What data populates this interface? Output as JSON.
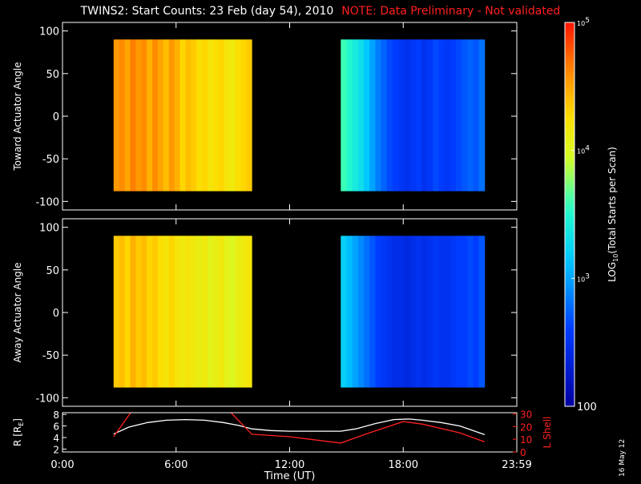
{
  "title": {
    "main": "TWINS2: Start Counts: 23 Feb (day  54), 2010",
    "note": "NOTE: Data Preliminary - Not validated"
  },
  "stamp": "16 May 12",
  "colors": {
    "background": "#000000",
    "axes": "#ffffff",
    "note": "#ff2020",
    "r_line": "#ffffff",
    "lshell_line": "#ff2020"
  },
  "chart_data": [
    {
      "type": "heatmap",
      "name": "toward",
      "ylabel": "Toward Actuator Angle",
      "ylim": [
        -110,
        110
      ],
      "yticks": [
        100,
        50,
        0,
        -50,
        -100
      ],
      "xlim": [
        0,
        24
      ],
      "angle_range": [
        -88,
        90
      ],
      "colorscale": "log10",
      "segments": [
        {
          "t_start": 2.7,
          "t_end": 10.0,
          "log_counts": [
            4.55,
            4.6,
            4.5,
            4.65,
            4.55,
            4.6,
            4.45,
            4.6,
            4.5,
            4.4,
            4.55,
            4.45,
            4.3,
            4.4,
            4.35,
            4.25,
            4.3,
            4.2,
            4.25,
            4.3,
            4.2,
            4.15,
            4.25,
            4.3,
            4.35
          ]
        },
        {
          "t_start": 14.7,
          "t_end": 22.3,
          "log_counts": [
            3.6,
            3.5,
            3.4,
            3.3,
            3.15,
            3.0,
            2.85,
            2.75,
            2.65,
            2.6,
            2.55,
            2.5,
            2.55,
            2.6,
            2.5,
            2.55,
            2.65,
            2.6,
            2.55,
            2.6,
            2.65,
            2.7,
            2.75,
            2.7,
            2.8
          ]
        }
      ]
    },
    {
      "type": "heatmap",
      "name": "away",
      "ylabel": "Away Actuator Angle",
      "ylim": [
        -110,
        110
      ],
      "yticks": [
        100,
        50,
        0,
        -50,
        -100
      ],
      "xlim": [
        0,
        24
      ],
      "angle_range": [
        -88,
        90
      ],
      "colorscale": "log10",
      "segments": [
        {
          "t_start": 2.7,
          "t_end": 10.0,
          "log_counts": [
            4.35,
            4.4,
            4.3,
            4.45,
            4.35,
            4.4,
            4.3,
            4.35,
            4.25,
            4.2,
            4.3,
            4.2,
            4.15,
            4.2,
            4.15,
            4.1,
            4.15,
            4.05,
            4.1,
            4.15,
            4.05,
            4.0,
            4.1,
            4.15,
            4.2
          ]
        },
        {
          "t_start": 14.7,
          "t_end": 22.3,
          "log_counts": [
            3.2,
            3.1,
            3.0,
            2.9,
            2.8,
            2.7,
            2.6,
            2.55,
            2.5,
            2.45,
            2.45,
            2.4,
            2.45,
            2.5,
            2.45,
            2.5,
            2.55,
            2.5,
            2.5,
            2.55,
            2.6,
            2.6,
            2.65,
            2.6,
            2.7
          ]
        }
      ]
    },
    {
      "type": "line",
      "name": "orbit",
      "ylabel_left": "R [R",
      "ylabel_left_sub": "E",
      "ylabel_left_end": "]",
      "ylabel_right": "L Shell",
      "xlabel": "Time (UT)",
      "xlim": [
        0,
        24
      ],
      "xticks": [
        {
          "v": 0,
          "label": "0:00"
        },
        {
          "v": 6,
          "label": "6:00"
        },
        {
          "v": 12,
          "label": "12:00"
        },
        {
          "v": 18,
          "label": "18:00"
        },
        {
          "v": 24,
          "label": "23:59"
        }
      ],
      "ylim_left": [
        1.5,
        8.3
      ],
      "yticks_left": [
        2,
        4,
        6,
        8
      ],
      "ylim_right": [
        0,
        31
      ],
      "yticks_right": [
        0,
        10,
        20,
        30
      ],
      "series": [
        {
          "axis": "left",
          "color": "#ffffff",
          "x": [
            2.7,
            3.5,
            4.5,
            5.5,
            6.5,
            7.5,
            8.5,
            9.3,
            10.0,
            11.0,
            12.0,
            13.0,
            14.0,
            14.7,
            15.5,
            16.5,
            17.5,
            18.3,
            19.0,
            20.0,
            21.0,
            22.3
          ],
          "y": [
            4.6,
            5.8,
            6.6,
            7.0,
            7.1,
            7.0,
            6.6,
            6.1,
            5.5,
            5.2,
            5.1,
            5.1,
            5.1,
            5.1,
            5.5,
            6.4,
            7.1,
            7.2,
            7.0,
            6.6,
            6.0,
            4.5
          ]
        },
        {
          "axis": "right",
          "color": "#ff2020",
          "x": [
            2.7,
            3.6,
            3.6,
            8.9,
            8.9,
            10.0,
            12.0,
            14.7,
            16.0,
            18.0,
            19.0,
            21.0,
            22.3
          ],
          "y": [
            12,
            31,
            null,
            31,
            31,
            14,
            12,
            7,
            14,
            24,
            22,
            15,
            8
          ]
        }
      ]
    }
  ],
  "colorbar": {
    "label_prefix": "LOG",
    "label_sub": "10",
    "label_suffix": "(Total Starts per Scan)",
    "range_log": [
      2,
      5
    ],
    "ticks": [
      {
        "log": 5,
        "base": "10",
        "exp": "5"
      },
      {
        "log": 4,
        "base": "10",
        "exp": "4"
      },
      {
        "log": 3,
        "base": "10",
        "exp": "3"
      },
      {
        "log": 2,
        "label": "100"
      }
    ]
  }
}
